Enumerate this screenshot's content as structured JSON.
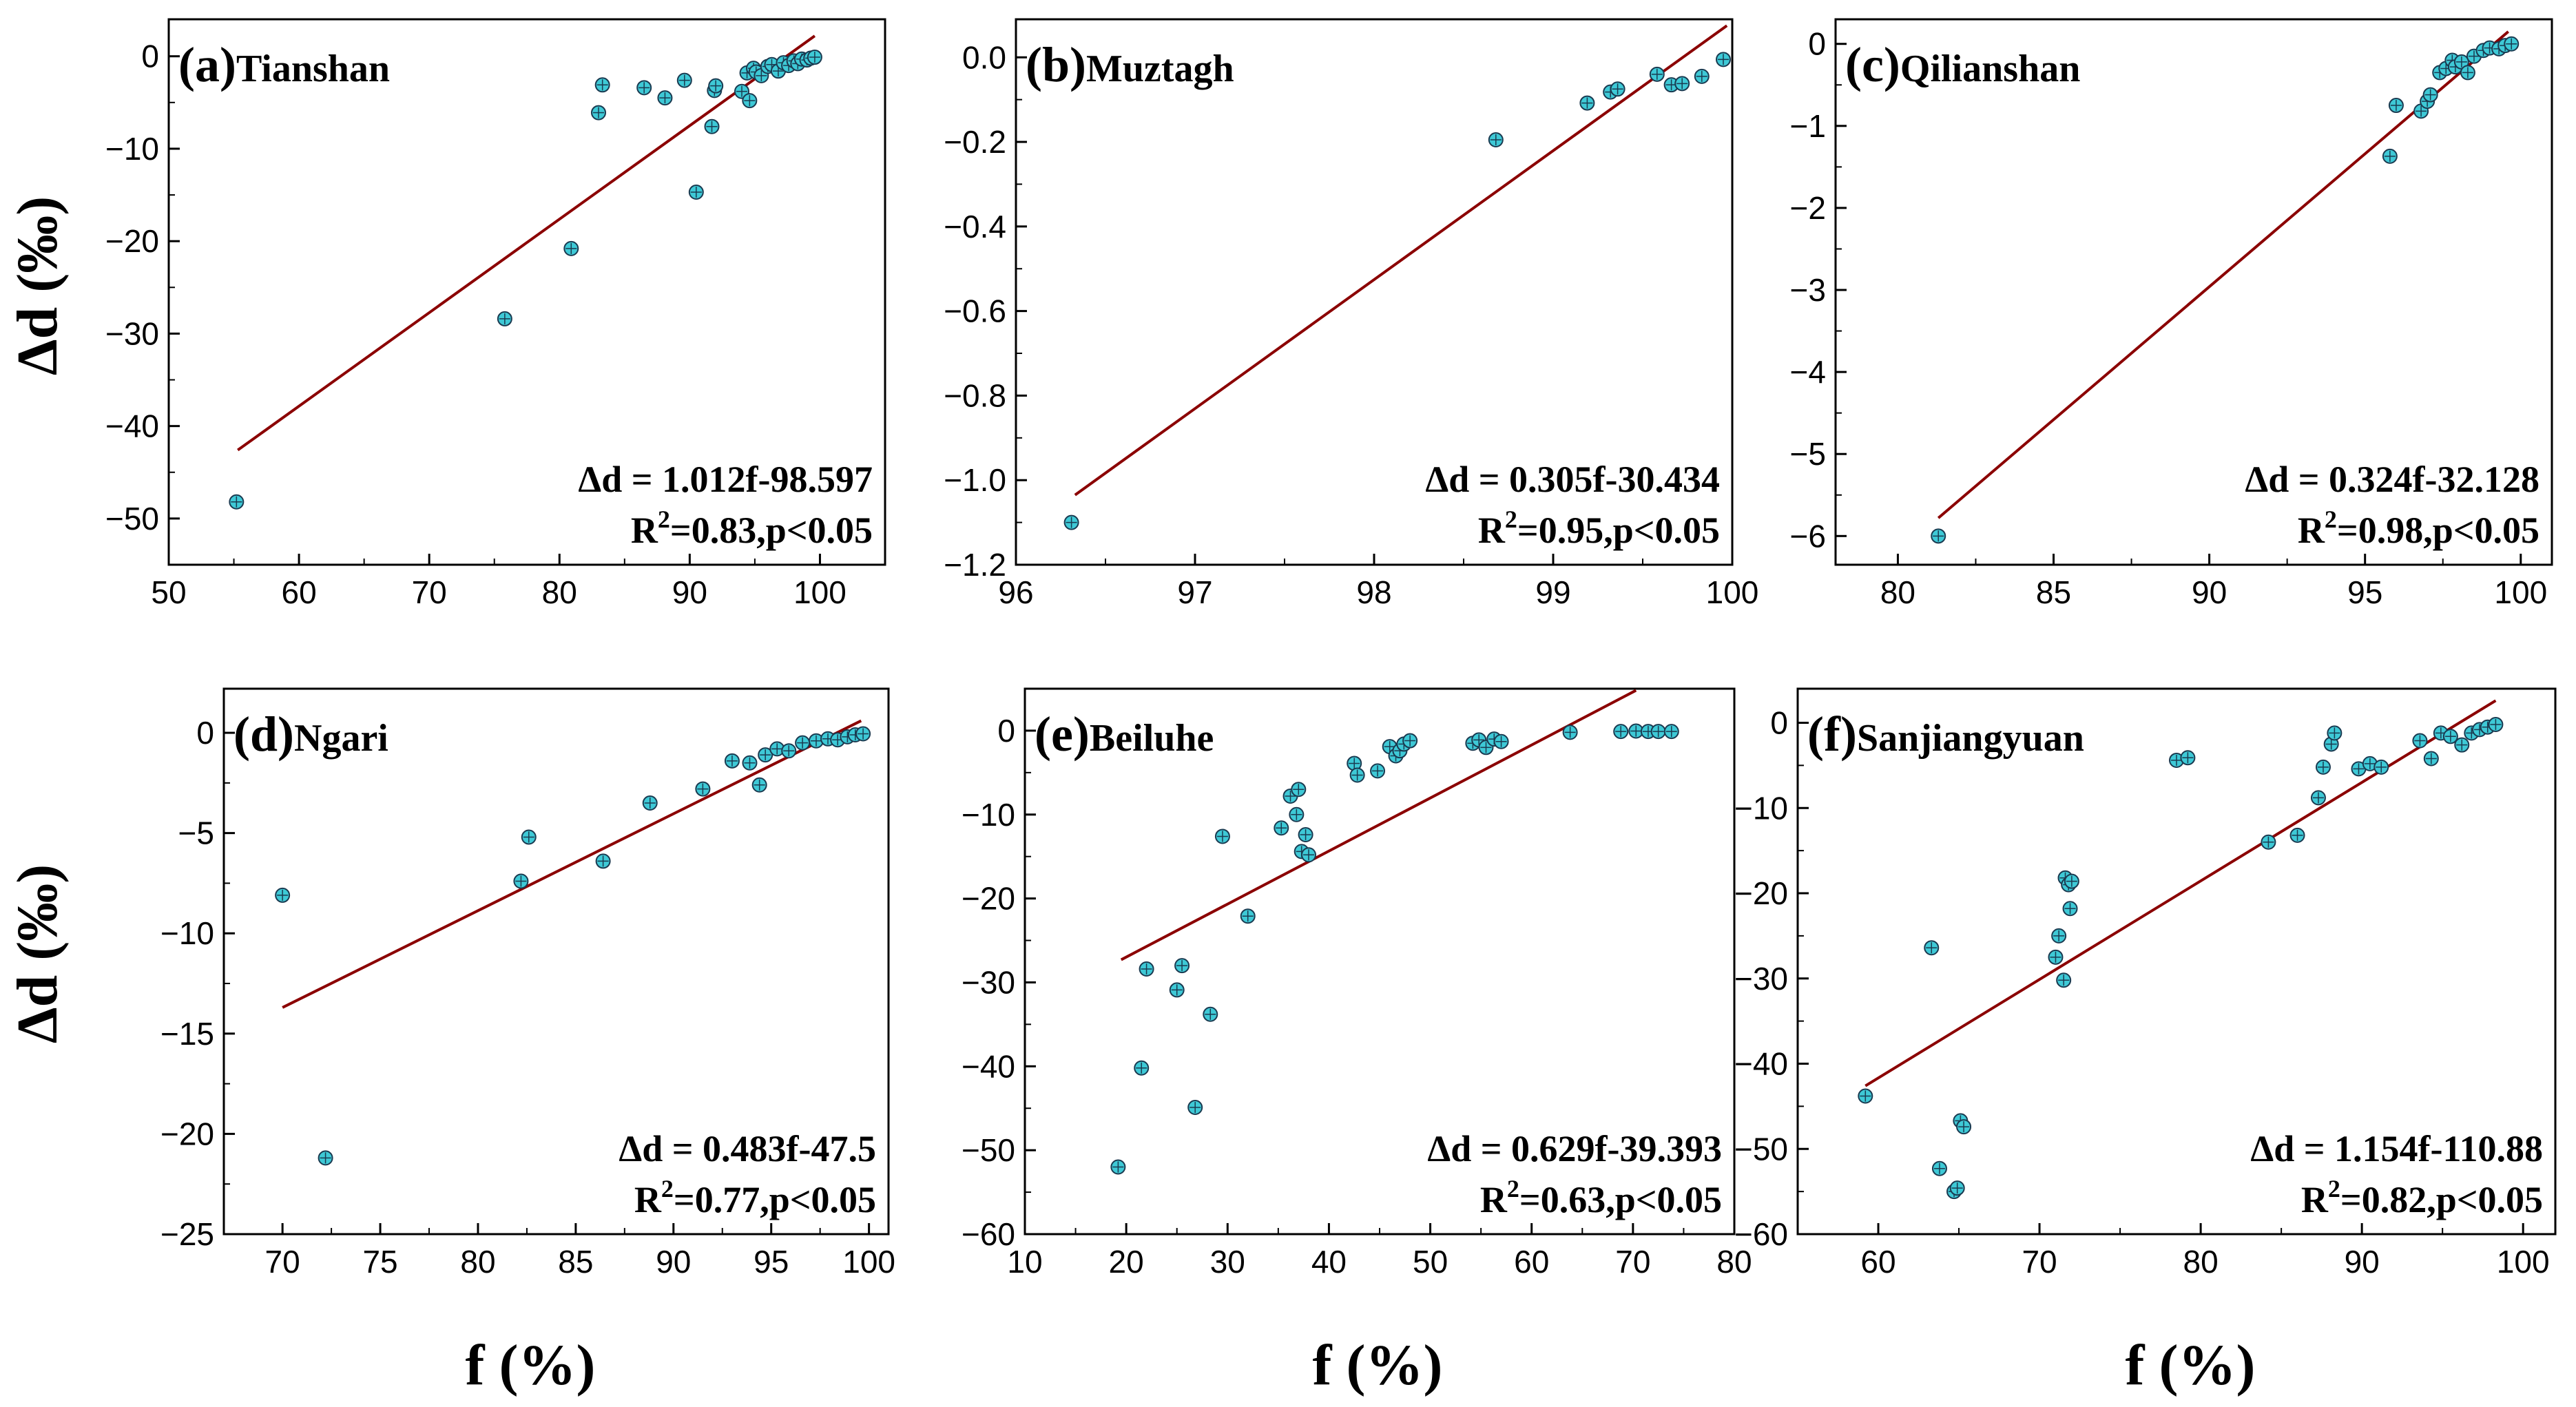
{
  "figure": {
    "y_axis_title": "Δd (‰)",
    "x_axis_title": "f (%)",
    "fit_color": "#8b0000",
    "point_fill": "#3ec9d6",
    "point_stroke": "#1a3a50"
  },
  "chart_data": [
    {
      "type": "scatter",
      "panel_letter": "(a)",
      "site": "Tianshan",
      "xlim": [
        50,
        105
      ],
      "ylim": [
        -55,
        4
      ],
      "xticks": [
        50,
        60,
        70,
        80,
        90,
        100
      ],
      "yticks": [
        0,
        -10,
        -20,
        -30,
        -40,
        -50
      ],
      "ytick_labels": [
        "0",
        "−10",
        "−20",
        "−30",
        "−40",
        "−50"
      ],
      "equation": "Δd = 1.012f-98.597",
      "r2_prefix": "R",
      "r2_sup": "2",
      "r2_rest": "=0.83,p<0.05",
      "fit": {
        "x": [
          55.3,
          99.6
        ],
        "y": [
          -42.6,
          2.2
        ]
      },
      "points": {
        "x": [
          55.2,
          75.8,
          80.9,
          83.0,
          83.3,
          86.5,
          88.1,
          89.6,
          90.5,
          91.7,
          91.9,
          92.0,
          94.0,
          94.4,
          94.6,
          94.9,
          95.1,
          95.5,
          96.0,
          96.3,
          96.8,
          97.2,
          97.6,
          98.0,
          98.3,
          98.6,
          99.0,
          99.3,
          99.6
        ],
        "y": [
          -48.2,
          -28.4,
          -20.8,
          -6.1,
          -3.1,
          -3.4,
          -4.5,
          -2.6,
          -14.7,
          -7.6,
          -3.7,
          -3.2,
          -3.8,
          -1.8,
          -4.8,
          -1.3,
          -1.7,
          -2.1,
          -1.1,
          -0.9,
          -1.6,
          -0.7,
          -1.0,
          -0.5,
          -0.8,
          -0.3,
          -0.4,
          -0.2,
          -0.1
        ]
      }
    },
    {
      "type": "scatter",
      "panel_letter": "(b)",
      "site": "Muztagh",
      "xlim": [
        96,
        100
      ],
      "ylim": [
        -1.2,
        0.09
      ],
      "xticks": [
        96,
        97,
        98,
        99,
        100
      ],
      "yticks": [
        0.0,
        -0.2,
        -0.4,
        -0.6,
        -0.8,
        -1.0,
        -1.2
      ],
      "ytick_labels": [
        "0.0",
        "−0.2",
        "−0.4",
        "−0.6",
        "−0.8",
        "−1.0",
        "−1.2"
      ],
      "equation": "Δd = 0.305f-30.434",
      "r2_prefix": "R",
      "r2_sup": "2",
      "r2_rest": "=0.95,p<0.05",
      "fit": {
        "x": [
          96.33,
          99.97
        ],
        "y": [
          -1.035,
          0.075
        ]
      },
      "points": {
        "x": [
          96.31,
          98.68,
          99.19,
          99.32,
          99.36,
          99.58,
          99.66,
          99.72,
          99.83,
          99.95
        ],
        "y": [
          -1.1,
          -0.195,
          -0.108,
          -0.082,
          -0.075,
          -0.04,
          -0.065,
          -0.062,
          -0.045,
          -0.005
        ]
      }
    },
    {
      "type": "scatter",
      "panel_letter": "(c)",
      "site": "Qilianshan",
      "xlim": [
        78,
        101
      ],
      "ylim": [
        -6.35,
        0.3
      ],
      "xticks": [
        80,
        85,
        90,
        95,
        100
      ],
      "yticks": [
        0,
        -1,
        -2,
        -3,
        -4,
        -5,
        -6
      ],
      "ytick_labels": [
        "0",
        "−1",
        "−2",
        "−3",
        "−4",
        "−5",
        "−6"
      ],
      "equation": "Δd = 0.324f-32.128",
      "r2_prefix": "R",
      "r2_sup": "2",
      "r2_rest": "=0.98,p<0.05",
      "fit": {
        "x": [
          81.3,
          99.6
        ],
        "y": [
          -5.78,
          0.15
        ]
      },
      "points": {
        "x": [
          81.3,
          95.8,
          96.0,
          96.8,
          97.0,
          97.1,
          97.4,
          97.6,
          97.8,
          97.9,
          98.1,
          98.3,
          98.5,
          98.8,
          99.0,
          99.3,
          99.5,
          99.7
        ],
        "y": [
          -6.0,
          -1.37,
          -0.75,
          -0.82,
          -0.7,
          -0.62,
          -0.35,
          -0.3,
          -0.2,
          -0.28,
          -0.22,
          -0.35,
          -0.15,
          -0.08,
          -0.05,
          -0.06,
          -0.02,
          0.0
        ]
      }
    },
    {
      "type": "scatter",
      "panel_letter": "(d)",
      "site": "Ngari",
      "xlim": [
        67,
        101
      ],
      "ylim": [
        -25,
        2.2
      ],
      "xticks": [
        70,
        75,
        80,
        85,
        90,
        95,
        100
      ],
      "yticks": [
        0,
        -5,
        -10,
        -15,
        -20,
        -25
      ],
      "ytick_labels": [
        "0",
        "−5",
        "−10",
        "−15",
        "−20",
        "−25"
      ],
      "equation": "Δd = 0.483f-47.5",
      "r2_prefix": "R",
      "r2_sup": "2",
      "r2_rest": "=0.77,p<0.05",
      "fit": {
        "x": [
          70.0,
          99.6
        ],
        "y": [
          -13.7,
          0.6
        ]
      },
      "points": {
        "x": [
          70.0,
          72.2,
          82.2,
          82.6,
          86.4,
          88.8,
          91.5,
          93.0,
          93.9,
          94.4,
          94.7,
          95.3,
          95.9,
          96.6,
          97.3,
          97.9,
          98.4,
          98.9,
          99.3,
          99.7
        ],
        "y": [
          -8.1,
          -21.2,
          -7.4,
          -5.2,
          -6.4,
          -3.5,
          -2.8,
          -1.4,
          -1.5,
          -2.6,
          -1.1,
          -0.8,
          -0.9,
          -0.5,
          -0.4,
          -0.3,
          -0.35,
          -0.2,
          -0.1,
          -0.05
        ]
      }
    },
    {
      "type": "scatter",
      "panel_letter": "(e)",
      "site": "Beiluhe",
      "xlim": [
        10,
        80
      ],
      "ylim": [
        -60,
        5
      ],
      "xticks": [
        10,
        20,
        30,
        40,
        50,
        60,
        70,
        80
      ],
      "yticks": [
        0,
        -10,
        -20,
        -30,
        -40,
        -50,
        -60
      ],
      "ytick_labels": [
        "0",
        "−10",
        "−20",
        "−30",
        "−40",
        "−50",
        "−60"
      ],
      "equation": "Δd = 0.629f-39.393",
      "r2_prefix": "R",
      "r2_sup": "2",
      "r2_rest": "=0.63,p<0.05",
      "fit": {
        "x": [
          19.5,
          70.3
        ],
        "y": [
          -27.3,
          4.8
        ]
      },
      "points": {
        "x": [
          19.2,
          21.5,
          22.0,
          25.0,
          25.5,
          26.8,
          28.3,
          29.5,
          32.0,
          35.3,
          36.2,
          36.8,
          37.0,
          37.3,
          37.7,
          38.0,
          42.5,
          42.8,
          44.8,
          46.0,
          46.6,
          47.0,
          47.4,
          48.0,
          54.2,
          54.8,
          55.5,
          56.3,
          57.0,
          63.8,
          68.8,
          70.3,
          71.5,
          72.5,
          73.8
        ],
        "y": [
          -52.0,
          -40.2,
          -28.4,
          -30.9,
          -28.0,
          -44.9,
          -33.8,
          -12.6,
          -22.1,
          -11.6,
          -7.8,
          -10.0,
          -7.0,
          -14.4,
          -12.4,
          -14.8,
          -3.9,
          -5.3,
          -4.8,
          -1.9,
          -3.0,
          -2.4,
          -1.6,
          -1.2,
          -1.5,
          -1.1,
          -2.0,
          -1.0,
          -1.3,
          -0.2,
          -0.1,
          -0.05,
          -0.1,
          -0.1,
          -0.1
        ]
      }
    },
    {
      "type": "scatter",
      "panel_letter": "(f)",
      "site": "Sanjiangyuan",
      "xlim": [
        55,
        102
      ],
      "ylim": [
        -60,
        4
      ],
      "xticks": [
        60,
        70,
        80,
        90,
        100
      ],
      "yticks": [
        0,
        -10,
        -20,
        -30,
        -40,
        -50,
        -60
      ],
      "ytick_labels": [
        "0",
        "−10",
        "−20",
        "−30",
        "−40",
        "−50",
        "−60"
      ],
      "equation": "Δd = 1.154f-110.88",
      "r2_prefix": "R",
      "r2_sup": "2",
      "r2_rest": "=0.82,p<0.05",
      "fit": {
        "x": [
          59.2,
          98.3
        ],
        "y": [
          -42.6,
          2.6
        ]
      },
      "points": {
        "x": [
          59.2,
          63.3,
          63.8,
          64.7,
          64.9,
          65.1,
          65.3,
          71.0,
          71.2,
          71.5,
          71.6,
          71.8,
          71.9,
          72.0,
          78.5,
          79.2,
          84.2,
          86.0,
          87.3,
          87.6,
          88.1,
          88.3,
          89.8,
          90.5,
          91.2,
          93.6,
          94.3,
          94.9,
          95.5,
          96.2,
          96.8,
          97.3,
          97.8,
          98.3
        ],
        "y": [
          -43.8,
          -26.4,
          -52.3,
          -55.0,
          -54.6,
          -46.7,
          -47.4,
          -27.5,
          -25.0,
          -30.2,
          -18.2,
          -19.0,
          -21.8,
          -18.6,
          -4.4,
          -4.1,
          -14.0,
          -13.2,
          -8.8,
          -5.2,
          -2.5,
          -1.2,
          -5.4,
          -4.8,
          -5.2,
          -2.1,
          -4.2,
          -1.2,
          -1.6,
          -2.6,
          -1.2,
          -0.8,
          -0.5,
          -0.2
        ]
      }
    }
  ]
}
